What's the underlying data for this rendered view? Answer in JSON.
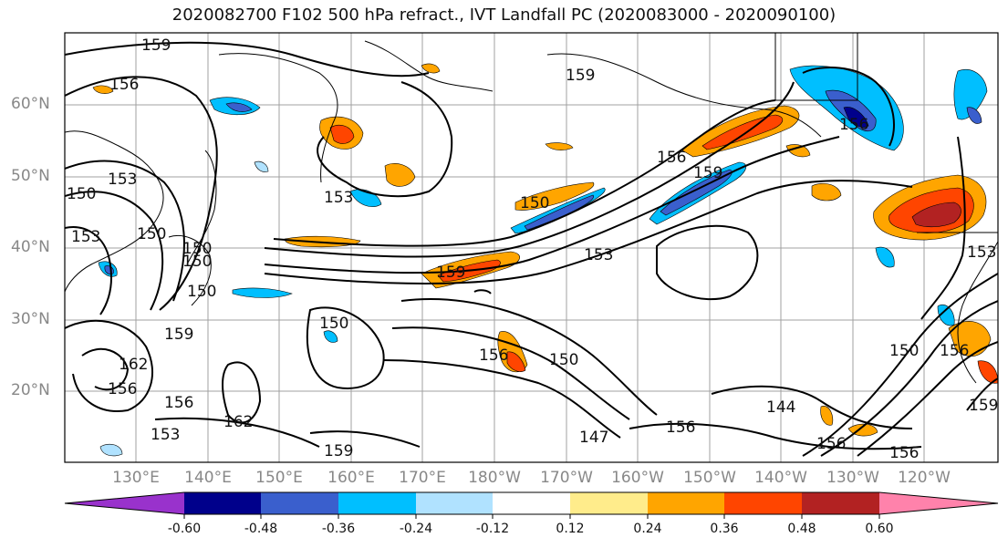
{
  "title": "2020082700 F102 500 hPa refract., IVT Landfall PC (2020083000 - 2020090100)",
  "lat_labels": [
    "60°N",
    "50°N",
    "40°N",
    "30°N",
    "20°N"
  ],
  "lon_labels": [
    "130°E",
    "140°E",
    "150°E",
    "160°E",
    "170°E",
    "180°W",
    "170°W",
    "160°W",
    "150°W",
    "140°W",
    "130°W",
    "120°W"
  ],
  "contour_labels": [
    "159",
    "156",
    "159",
    "153",
    "150",
    "153",
    "150",
    "150",
    "153",
    "150",
    "150",
    "159",
    "156",
    "162",
    "156",
    "162",
    "153",
    "156",
    "159",
    "150",
    "159",
    "150",
    "156",
    "150",
    "156",
    "159",
    "153",
    "147",
    "156",
    "144",
    "156",
    "156",
    "150",
    "156",
    "159",
    "153"
  ],
  "colorbar": {
    "ticks": [
      "-0.60",
      "-0.48",
      "-0.36",
      "-0.24",
      "-0.12",
      "0.12",
      "0.24",
      "0.36",
      "0.48",
      "0.60"
    ],
    "colors": [
      "#9932cc",
      "#00008b",
      "#3a5fcd",
      "#00bfff",
      "#b0e2ff",
      "#ffffff",
      "#ffec8b",
      "#ffa500",
      "#ff4500",
      "#b22222",
      "#ff82ab"
    ]
  },
  "colors": {
    "contour": "#000000",
    "coast": "#000000",
    "grid": "#a0a0a0"
  }
}
